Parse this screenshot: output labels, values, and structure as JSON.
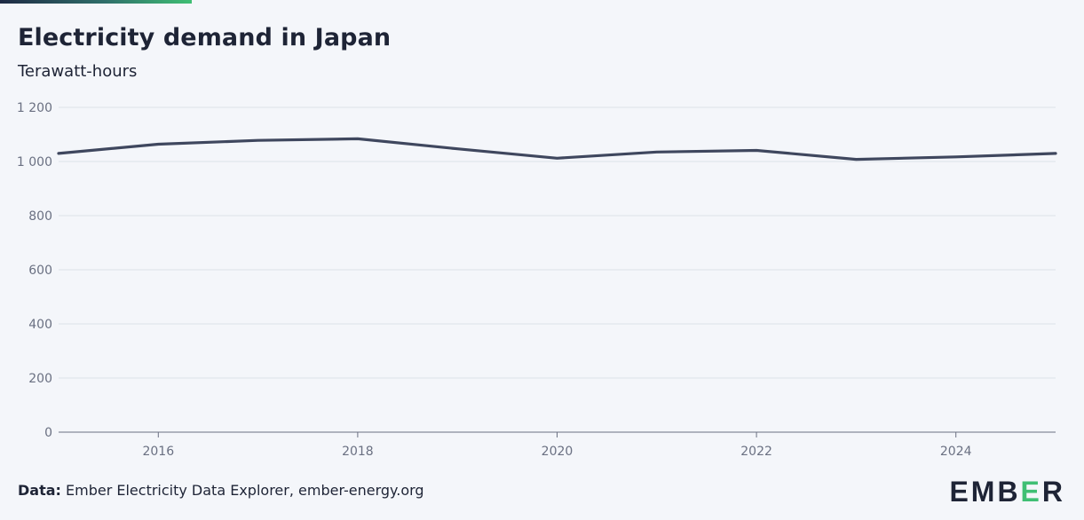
{
  "chart_data": {
    "type": "line",
    "title": "Electricity demand in Japan",
    "subtitle": "Terawatt-hours",
    "x": [
      2015,
      2016,
      2017,
      2018,
      2019,
      2020,
      2021,
      2022,
      2023,
      2024,
      2025
    ],
    "series": [
      {
        "values": [
          1030,
          1064,
          1078,
          1084,
          1047,
          1012,
          1035,
          1041,
          1008,
          1017,
          1030
        ],
        "color": "#3f475e"
      }
    ],
    "xlim": [
      2015,
      2025
    ],
    "ylim": [
      0,
      1200
    ],
    "xticks": [
      2016,
      2018,
      2020,
      2022,
      2024
    ],
    "yticks": [
      0,
      200,
      400,
      600,
      800,
      1000,
      1200
    ],
    "ytick_labels": [
      "0",
      "200",
      "400",
      "600",
      "800",
      "1 000",
      "1 200"
    ],
    "grid": true,
    "xlabel": "",
    "ylabel": ""
  },
  "footer": {
    "source_label": "Data:",
    "source_text": " Ember Electricity Data Explorer, ember-energy.org"
  },
  "logo": {
    "text": "EMBER",
    "accent_color": "#3fbf74"
  },
  "colors": {
    "background": "#f4f6fa",
    "text": "#1e2436",
    "grid": "#dde1e8",
    "axis": "#6a7082"
  }
}
